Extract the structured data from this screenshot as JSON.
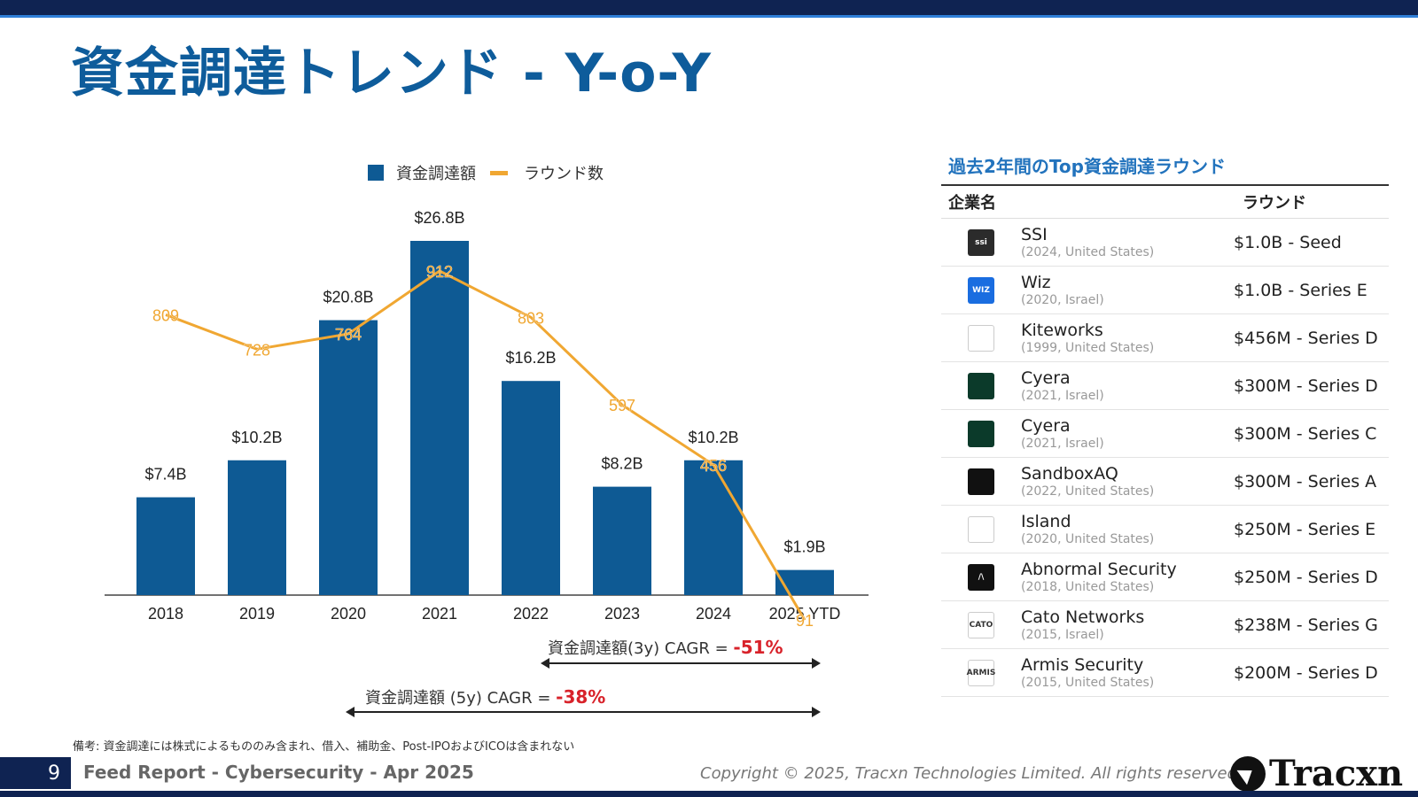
{
  "title": "資金調達トレンド - Y-o-Y",
  "legend": {
    "bar_label": "資金調達額",
    "line_label": "ラウンド数"
  },
  "colors": {
    "bar": "#0e5a94",
    "line": "#f0a732",
    "title": "#0e5c9b",
    "negative": "#d8222a",
    "dark_navy": "#0f2352"
  },
  "chart_data": {
    "type": "bar",
    "categories": [
      "2018",
      "2019",
      "2020",
      "2021",
      "2022",
      "2023",
      "2024",
      "2025 YTD"
    ],
    "series": [
      {
        "name": "資金調達額",
        "type": "bar",
        "values": [
          7.4,
          10.2,
          20.8,
          26.8,
          16.2,
          8.2,
          10.2,
          1.9
        ],
        "labels": [
          "$7.4B",
          "$10.2B",
          "$20.8B",
          "$26.8B",
          "$16.2B",
          "$8.2B",
          "$10.2B",
          "$1.9B"
        ]
      },
      {
        "name": "ラウンド数",
        "type": "line",
        "values": [
          809,
          728,
          764,
          912,
          803,
          597,
          456,
          91
        ]
      }
    ],
    "legend_position": "top"
  },
  "cagr": [
    {
      "label": "資金調達額(3y) CAGR = ",
      "value": "-51%"
    },
    {
      "label": "資金調達額 (5y) CAGR = ",
      "value": "-38%"
    }
  ],
  "table": {
    "heading": "過去2年間のTop資金調達ラウンド",
    "col_company": "企業名",
    "col_round": "ラウンド",
    "rows": [
      {
        "name": "SSI",
        "detail": "(2024, United States)",
        "round": "$1.0B - Seed",
        "logo_text": "ssi",
        "logo_bg": "#2b2b2b"
      },
      {
        "name": "Wiz",
        "detail": "(2020, Israel)",
        "round": "$1.0B - Series E",
        "logo_text": "WIZ",
        "logo_bg": "#1a6de0"
      },
      {
        "name": "Kiteworks",
        "detail": "(1999, United States)",
        "round": "$456M - Series D",
        "logo_text": "",
        "logo_bg": "#ffffff"
      },
      {
        "name": "Cyera",
        "detail": "(2021, Israel)",
        "round": "$300M - Series D",
        "logo_text": "",
        "logo_bg": "#0b3a2a"
      },
      {
        "name": "Cyera",
        "detail": "(2021, Israel)",
        "round": "$300M - Series C",
        "logo_text": "",
        "logo_bg": "#0b3a2a"
      },
      {
        "name": "SandboxAQ",
        "detail": "(2022, United States)",
        "round": "$300M - Series A",
        "logo_text": "",
        "logo_bg": "#111111"
      },
      {
        "name": "Island",
        "detail": "(2020, United States)",
        "round": "$250M - Series E",
        "logo_text": "",
        "logo_bg": "#ffffff"
      },
      {
        "name": "Abnormal Security",
        "detail": "(2018, United States)",
        "round": "$250M - Series D",
        "logo_text": "/\\",
        "logo_bg": "#111111"
      },
      {
        "name": "Cato Networks",
        "detail": "(2015, Israel)",
        "round": "$238M - Series G",
        "logo_text": "CATO",
        "logo_bg": "#ffffff"
      },
      {
        "name": "Armis Security",
        "detail": "(2015, United States)",
        "round": "$200M - Series D",
        "logo_text": "ARMIS",
        "logo_bg": "#ffffff"
      }
    ]
  },
  "footnote": "備考: 資金調達には株式によるもののみ含まれ、借入、補助金、Post-IPOおよびICOは含まれない",
  "footer": {
    "page_number": "9",
    "report_title": "Feed Report - Cybersecurity - Apr 2025",
    "copyright": "Copyright © 2025, Tracxn Technologies Limited. All rights reserved.",
    "brand": "Tracxn"
  }
}
